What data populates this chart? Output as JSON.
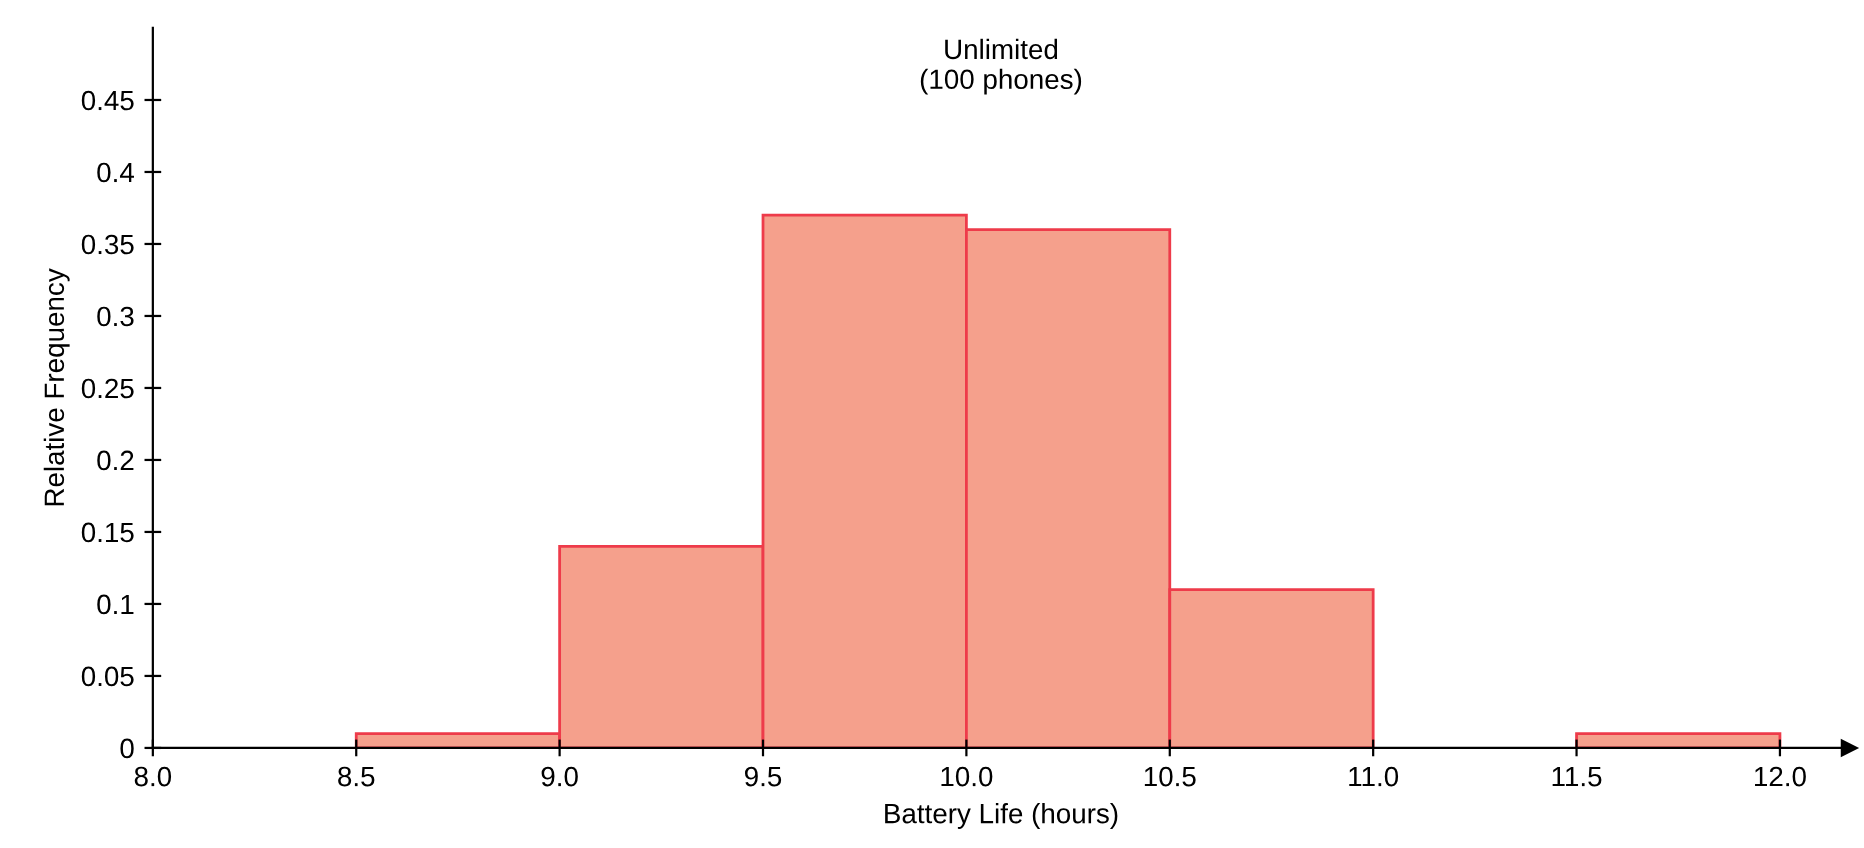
{
  "chart_data": {
    "type": "histogram",
    "title": "Unlimited\n(100 phones)",
    "xlabel": "Battery Life (hours)",
    "ylabel": "Relative Frequency",
    "bins": [
      8.5,
      9.0,
      9.5,
      10.0,
      10.5,
      11.0,
      11.5,
      12.0
    ],
    "values": [
      0.01,
      0.14,
      0.37,
      0.36,
      0.11,
      0,
      0.01
    ],
    "color": "#f5a08c",
    "xlim": [
      8.0,
      12.17
    ],
    "xticks": [
      {
        "value": 8.0,
        "label": "8.0"
      },
      {
        "value": 8.5,
        "label": "8.5"
      },
      {
        "value": 9.0,
        "label": "9.0"
      },
      {
        "value": 9.5,
        "label": "9.5"
      },
      {
        "value": 10.0,
        "label": "10.0"
      },
      {
        "value": 10.5,
        "label": "10.5"
      },
      {
        "value": 11.0,
        "label": "11.0"
      },
      {
        "value": 11.5,
        "label": "11.5"
      },
      {
        "value": 12.0,
        "label": "12.0"
      }
    ],
    "ylim": [
      0,
      0.5
    ],
    "yticks": [
      0,
      0.05,
      0.1,
      0.15,
      0.2,
      0.25,
      0.3,
      0.35,
      0.4,
      0.45
    ],
    "grid": false,
    "legend": false
  }
}
